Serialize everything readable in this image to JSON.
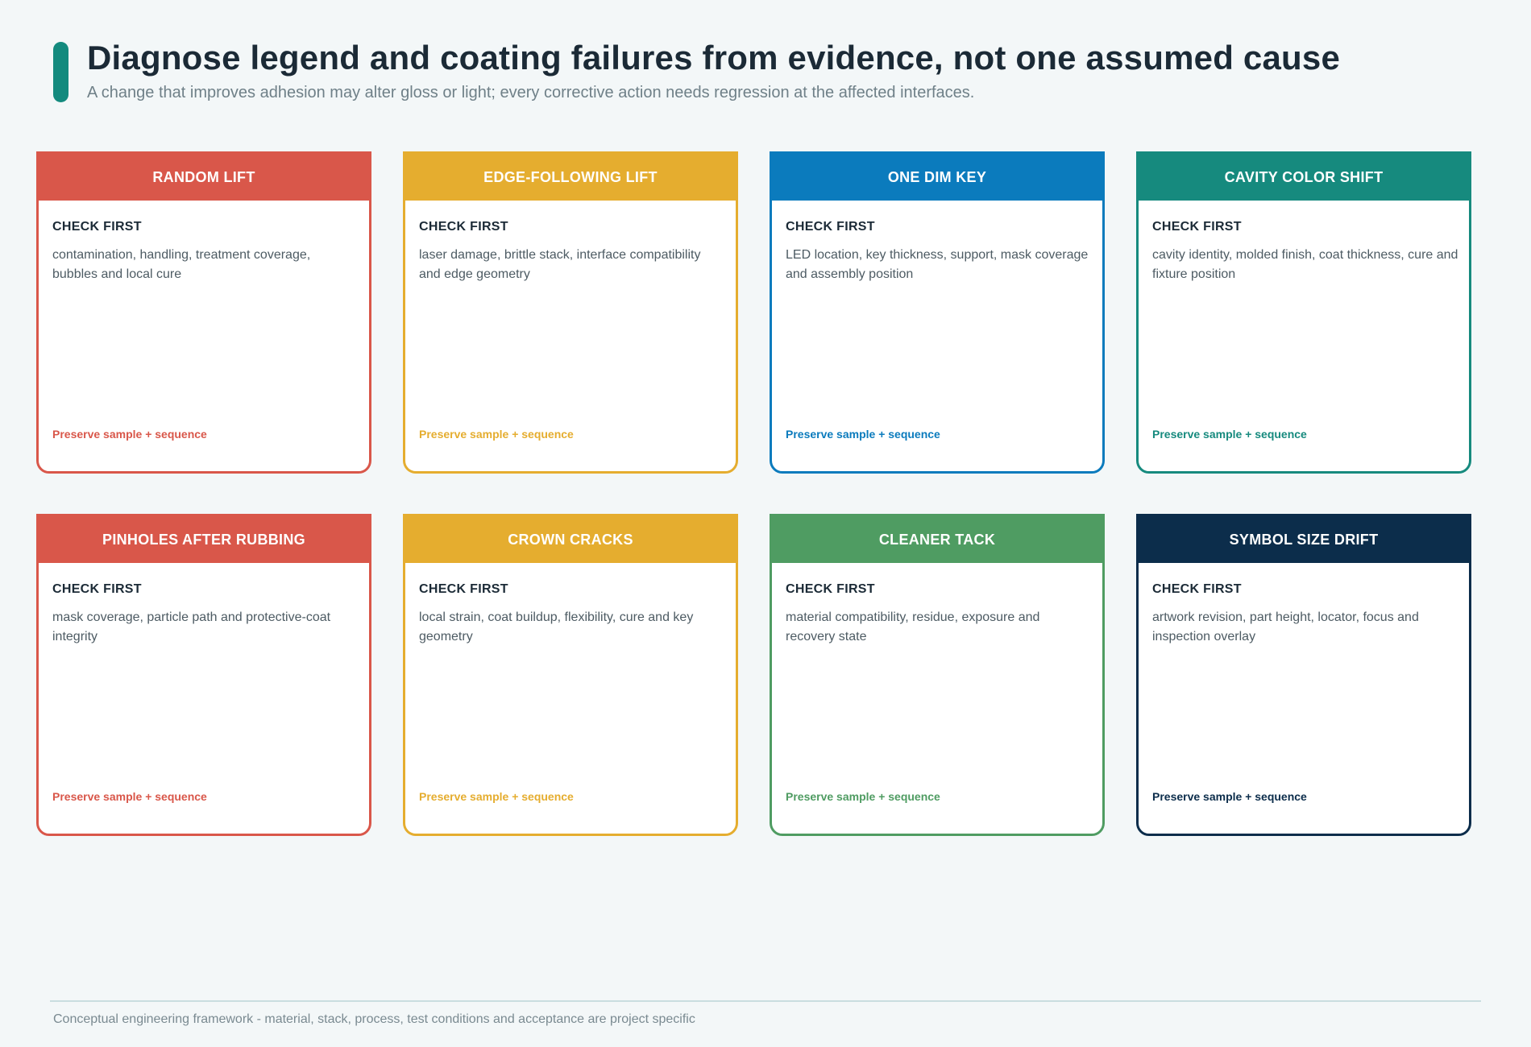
{
  "header": {
    "title": "Diagnose legend and coating failures from evidence, not one assumed cause",
    "subtitle": "A change that improves adhesion may alter gloss or light; every corrective action needs regression at the affected interfaces."
  },
  "cards": [
    {
      "title": "RANDOM LIFT",
      "label": "CHECK FIRST",
      "text": "contamination, handling, treatment coverage, bubbles and local cure",
      "footer": "Preserve sample + sequence",
      "color": "#d9574a"
    },
    {
      "title": "EDGE-FOLLOWING LIFT",
      "label": "CHECK FIRST",
      "text": "laser damage, brittle stack, interface compatibility and edge geometry",
      "footer": "Preserve sample + sequence",
      "color": "#e5ad2f"
    },
    {
      "title": "ONE DIM KEY",
      "label": "CHECK FIRST",
      "text": "LED location, key thickness, support, mask coverage and assembly position",
      "footer": "Preserve sample + sequence",
      "color": "#0b7bbd"
    },
    {
      "title": "CAVITY COLOR SHIFT",
      "label": "CHECK FIRST",
      "text": "cavity identity, molded finish, coat thickness, cure and fixture position",
      "footer": "Preserve sample + sequence",
      "color": "#168a7e"
    },
    {
      "title": "PINHOLES AFTER RUBBING",
      "label": "CHECK FIRST",
      "text": "mask coverage, particle path and protective-coat integrity",
      "footer": "Preserve sample + sequence",
      "color": "#d9574a"
    },
    {
      "title": "CROWN CRACKS",
      "label": "CHECK FIRST",
      "text": "local strain, coat buildup, flexibility, cure and key geometry",
      "footer": "Preserve sample + sequence",
      "color": "#e5ad2f"
    },
    {
      "title": "CLEANER TACK",
      "label": "CHECK FIRST",
      "text": "material compatibility, residue, exposure and recovery state",
      "footer": "Preserve sample + sequence",
      "color": "#4f9c62"
    },
    {
      "title": "SYMBOL SIZE DRIFT",
      "label": "CHECK FIRST",
      "text": "artwork revision, part height, locator, focus and inspection overlay",
      "footer": "Preserve sample + sequence",
      "color": "#0c2d4b"
    }
  ],
  "footer": {
    "note": "Conceptual engineering framework - material, stack, process, test conditions and acceptance are project specific"
  }
}
